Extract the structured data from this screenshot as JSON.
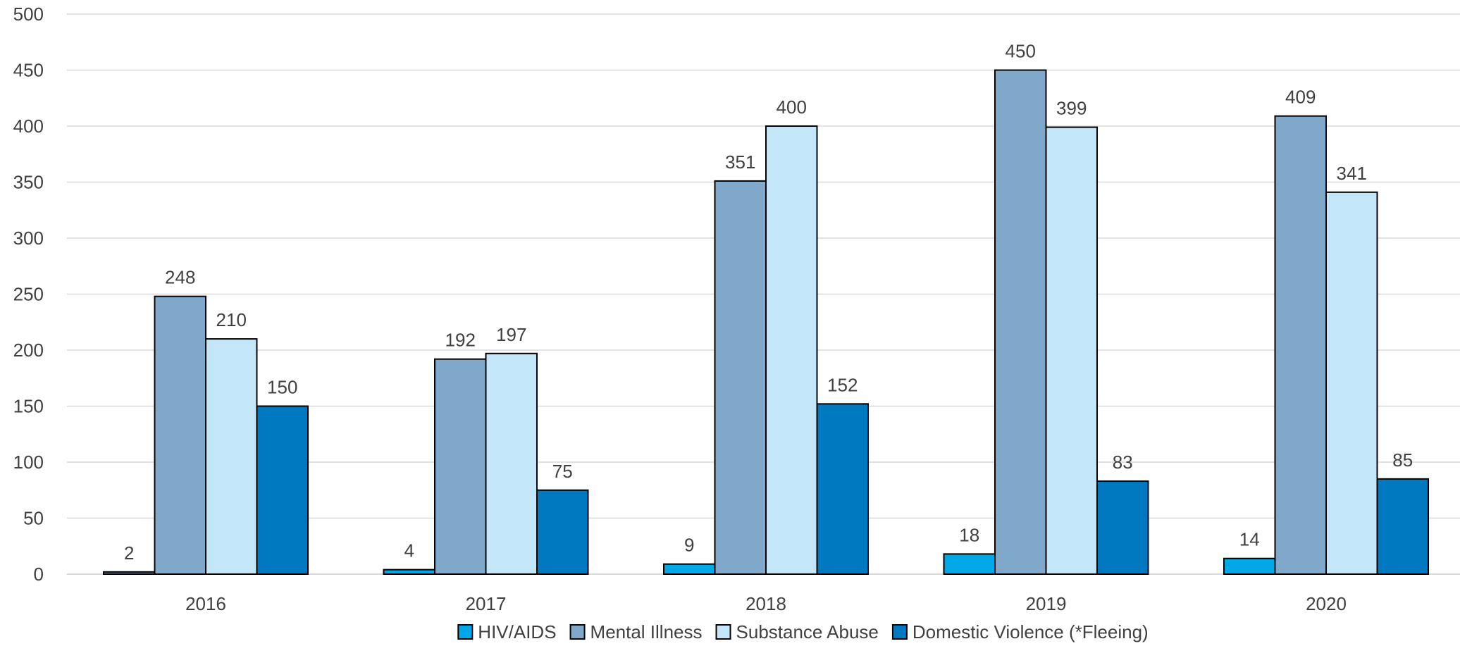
{
  "chart_data": {
    "type": "bar",
    "categories": [
      "2016",
      "2017",
      "2018",
      "2019",
      "2020"
    ],
    "series": [
      {
        "name": "HIV/AIDS",
        "color": "#00a8e8",
        "values": [
          2,
          4,
          9,
          18,
          14
        ]
      },
      {
        "name": "Mental Illness",
        "color": "#7fa8ca",
        "values": [
          248,
          192,
          351,
          450,
          409
        ]
      },
      {
        "name": "Substance Abuse",
        "color": "#c3e6f8",
        "values": [
          210,
          197,
          400,
          399,
          341
        ]
      },
      {
        "name": "Domestic Violence (*Fleeing)",
        "color": "#0079c1",
        "values": [
          150,
          75,
          152,
          83,
          85
        ]
      }
    ],
    "ylim": [
      0,
      500
    ],
    "yticks": [
      "0",
      "50",
      "100",
      "150",
      "200",
      "250",
      "300",
      "350",
      "400",
      "450",
      "500"
    ],
    "grid": true,
    "legend_position": "bottom",
    "data_labels": true
  }
}
